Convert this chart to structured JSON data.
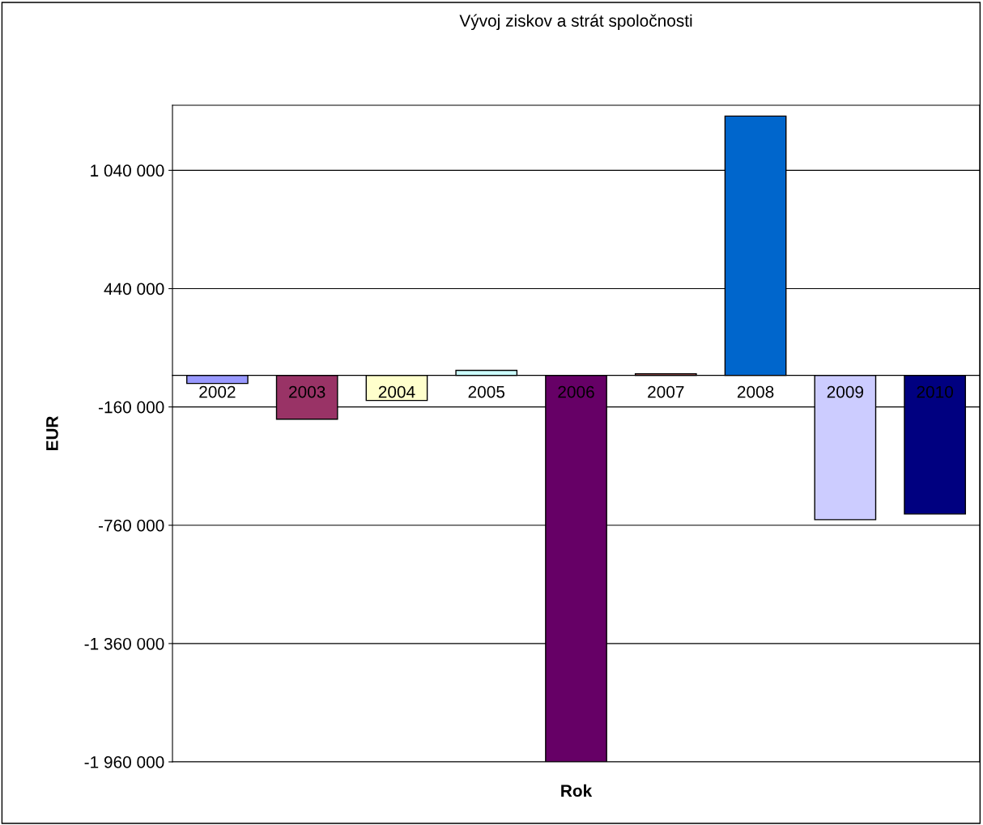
{
  "chart_data": {
    "type": "bar",
    "title": "Vývoj ziskov a strát spoločnosti",
    "xlabel": "Rok",
    "ylabel": "EUR",
    "categories": [
      "2002",
      "2003",
      "2004",
      "2005",
      "2006",
      "2007",
      "2008",
      "2009",
      "2010"
    ],
    "values": [
      -41000,
      -222000,
      -127000,
      25000,
      -1960000,
      8000,
      1315000,
      -732000,
      -703000
    ],
    "colors": [
      "#9999ff",
      "#993366",
      "#ffffcc",
      "#ccffff",
      "#660066",
      "#ff8080",
      "#0066cc",
      "#ccccff",
      "#000080"
    ],
    "ylim": [
      -1960000,
      1370000
    ],
    "yticks": [
      {
        "value": -1960000,
        "label": "-1 960 000"
      },
      {
        "value": -1360000,
        "label": "-1 360 000"
      },
      {
        "value": -760000,
        "label": "-760 000"
      },
      {
        "value": -160000,
        "label": "-160 000"
      },
      {
        "value": 440000,
        "label": "440 000"
      },
      {
        "value": 1040000,
        "label": "1 040 000"
      }
    ],
    "grid": "y",
    "legend": false
  }
}
